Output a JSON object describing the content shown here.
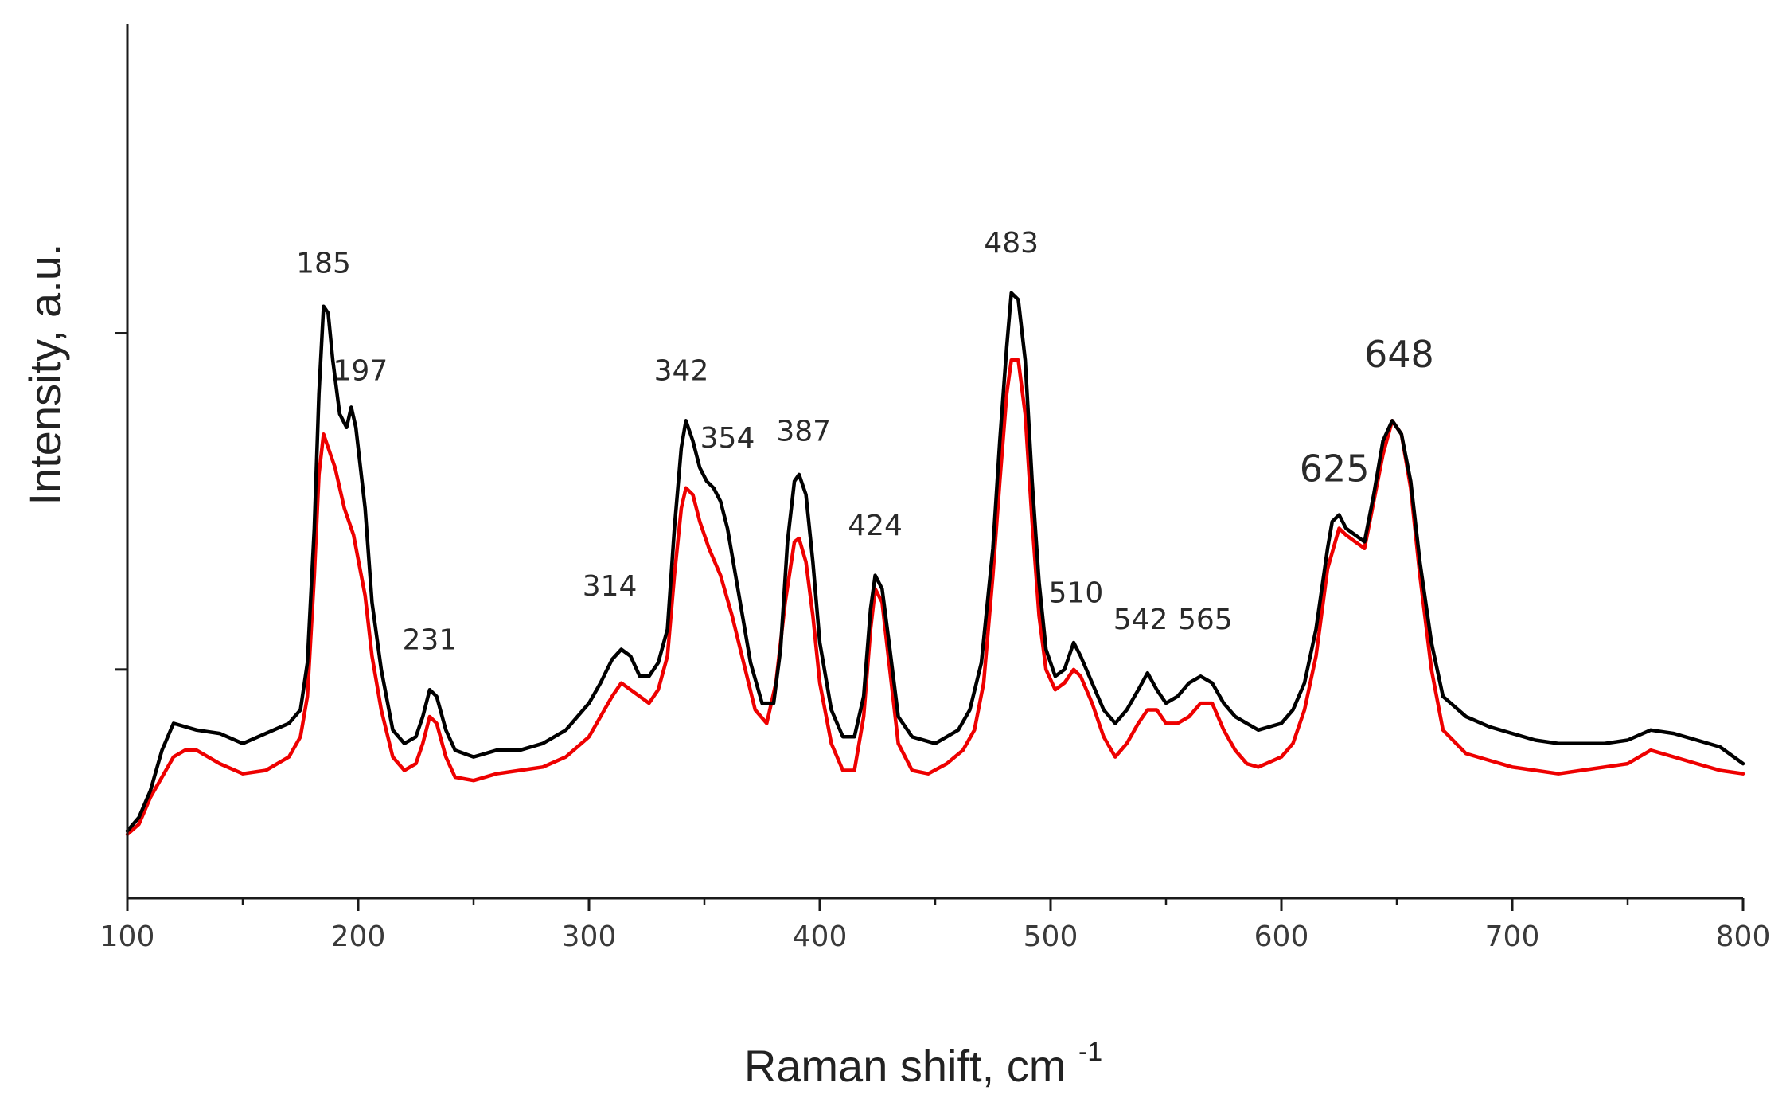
{
  "chart_data": {
    "type": "line",
    "xlabel": "Raman shift, cm",
    "xlabel_superscript": "-1",
    "ylabel": "Intensity, a.u.",
    "xlim": [
      100,
      800
    ],
    "ylim": [
      0,
      130
    ],
    "x_ticks": [
      "100",
      "200",
      "300",
      "400",
      "500",
      "600",
      "700",
      "800"
    ],
    "y_ticks": [
      34,
      84,
      134
    ],
    "grid": false,
    "series": [
      {
        "color": "#000000",
        "points": [
          [
            100,
            10
          ],
          [
            105,
            12
          ],
          [
            110,
            16
          ],
          [
            115,
            22
          ],
          [
            120,
            26
          ],
          [
            125,
            25.5
          ],
          [
            130,
            25
          ],
          [
            140,
            24.5
          ],
          [
            150,
            23
          ],
          [
            160,
            24.5
          ],
          [
            170,
            26
          ],
          [
            175,
            28
          ],
          [
            178,
            35
          ],
          [
            181,
            55
          ],
          [
            183,
            75
          ],
          [
            185,
            88
          ],
          [
            187,
            87
          ],
          [
            189,
            80
          ],
          [
            192,
            72
          ],
          [
            195,
            70
          ],
          [
            197,
            73
          ],
          [
            199,
            70
          ],
          [
            203,
            58
          ],
          [
            206,
            44
          ],
          [
            210,
            34
          ],
          [
            215,
            25
          ],
          [
            220,
            23
          ],
          [
            225,
            24
          ],
          [
            228,
            27
          ],
          [
            231,
            31
          ],
          [
            234,
            30
          ],
          [
            238,
            25
          ],
          [
            242,
            22
          ],
          [
            250,
            21
          ],
          [
            260,
            22
          ],
          [
            270,
            22
          ],
          [
            280,
            23
          ],
          [
            290,
            25
          ],
          [
            300,
            29
          ],
          [
            305,
            32
          ],
          [
            310,
            35.5
          ],
          [
            314,
            37
          ],
          [
            318,
            36
          ],
          [
            322,
            33
          ],
          [
            326,
            33
          ],
          [
            330,
            35
          ],
          [
            334,
            40
          ],
          [
            337,
            55
          ],
          [
            340,
            67
          ],
          [
            342,
            71
          ],
          [
            345,
            68
          ],
          [
            348,
            64
          ],
          [
            351,
            62
          ],
          [
            354,
            61
          ],
          [
            357,
            59
          ],
          [
            360,
            55
          ],
          [
            365,
            45
          ],
          [
            370,
            35
          ],
          [
            375,
            29
          ],
          [
            380,
            29
          ],
          [
            383,
            37
          ],
          [
            386,
            53
          ],
          [
            389,
            62
          ],
          [
            391,
            63
          ],
          [
            394,
            60
          ],
          [
            397,
            50
          ],
          [
            400,
            38
          ],
          [
            405,
            28
          ],
          [
            410,
            24
          ],
          [
            415,
            24
          ],
          [
            419,
            30
          ],
          [
            422,
            43
          ],
          [
            424,
            48
          ],
          [
            427,
            46
          ],
          [
            430,
            38
          ],
          [
            434,
            27
          ],
          [
            440,
            24
          ],
          [
            450,
            23
          ],
          [
            460,
            25
          ],
          [
            465,
            28
          ],
          [
            470,
            35
          ],
          [
            475,
            52
          ],
          [
            478,
            68
          ],
          [
            481,
            82
          ],
          [
            483,
            90
          ],
          [
            486,
            89
          ],
          [
            489,
            80
          ],
          [
            492,
            62
          ],
          [
            495,
            47
          ],
          [
            498,
            37
          ],
          [
            502,
            33
          ],
          [
            506,
            34
          ],
          [
            510,
            38
          ],
          [
            513,
            36
          ],
          [
            518,
            32
          ],
          [
            523,
            28
          ],
          [
            528,
            26
          ],
          [
            533,
            28
          ],
          [
            538,
            31
          ],
          [
            542,
            33.5
          ],
          [
            546,
            31
          ],
          [
            550,
            29
          ],
          [
            555,
            30
          ],
          [
            560,
            32
          ],
          [
            565,
            33
          ],
          [
            570,
            32
          ],
          [
            575,
            29
          ],
          [
            580,
            27
          ],
          [
            585,
            26
          ],
          [
            590,
            25
          ],
          [
            600,
            26
          ],
          [
            605,
            28
          ],
          [
            610,
            32
          ],
          [
            615,
            40
          ],
          [
            620,
            52
          ],
          [
            622,
            56
          ],
          [
            625,
            57
          ],
          [
            628,
            55
          ],
          [
            632,
            54
          ],
          [
            636,
            53
          ],
          [
            640,
            60
          ],
          [
            644,
            68
          ],
          [
            648,
            71
          ],
          [
            652,
            69
          ],
          [
            656,
            62
          ],
          [
            660,
            50
          ],
          [
            665,
            38
          ],
          [
            670,
            30
          ],
          [
            680,
            27
          ],
          [
            690,
            25.5
          ],
          [
            700,
            24.5
          ],
          [
            710,
            23.5
          ],
          [
            720,
            23
          ],
          [
            730,
            23
          ],
          [
            740,
            23
          ],
          [
            750,
            23.5
          ],
          [
            760,
            25
          ],
          [
            770,
            24.5
          ],
          [
            780,
            23.5
          ],
          [
            790,
            22.5
          ],
          [
            800,
            20
          ]
        ]
      },
      {
        "color": "#ee0000",
        "points": [
          [
            100,
            9.5
          ],
          [
            105,
            11
          ],
          [
            110,
            15
          ],
          [
            115,
            18
          ],
          [
            120,
            21
          ],
          [
            125,
            22
          ],
          [
            130,
            22
          ],
          [
            140,
            20
          ],
          [
            150,
            18.5
          ],
          [
            160,
            19
          ],
          [
            170,
            21
          ],
          [
            175,
            24
          ],
          [
            178,
            30
          ],
          [
            181,
            48
          ],
          [
            183,
            63
          ],
          [
            185,
            69
          ],
          [
            187,
            67
          ],
          [
            190,
            64
          ],
          [
            194,
            58
          ],
          [
            198,
            54
          ],
          [
            203,
            45
          ],
          [
            206,
            36
          ],
          [
            210,
            28
          ],
          [
            215,
            21
          ],
          [
            220,
            19
          ],
          [
            225,
            20
          ],
          [
            228,
            23
          ],
          [
            231,
            27
          ],
          [
            234,
            26
          ],
          [
            238,
            21
          ],
          [
            242,
            18
          ],
          [
            250,
            17.5
          ],
          [
            260,
            18.5
          ],
          [
            270,
            19
          ],
          [
            280,
            19.5
          ],
          [
            290,
            21
          ],
          [
            300,
            24
          ],
          [
            305,
            27
          ],
          [
            310,
            30
          ],
          [
            314,
            32
          ],
          [
            318,
            31
          ],
          [
            322,
            30
          ],
          [
            326,
            29
          ],
          [
            330,
            31
          ],
          [
            334,
            36
          ],
          [
            337,
            48
          ],
          [
            340,
            58
          ],
          [
            342,
            61
          ],
          [
            345,
            60
          ],
          [
            348,
            56
          ],
          [
            352,
            52
          ],
          [
            357,
            48
          ],
          [
            362,
            42
          ],
          [
            367,
            35
          ],
          [
            372,
            28
          ],
          [
            377,
            26
          ],
          [
            381,
            32
          ],
          [
            385,
            44
          ],
          [
            389,
            53
          ],
          [
            391,
            53.5
          ],
          [
            394,
            50
          ],
          [
            397,
            42
          ],
          [
            400,
            32
          ],
          [
            405,
            23
          ],
          [
            410,
            19
          ],
          [
            415,
            19
          ],
          [
            419,
            27
          ],
          [
            422,
            40
          ],
          [
            424,
            46
          ],
          [
            427,
            44
          ],
          [
            430,
            35
          ],
          [
            434,
            23
          ],
          [
            440,
            19
          ],
          [
            447,
            18.5
          ],
          [
            455,
            20
          ],
          [
            462,
            22
          ],
          [
            467,
            25
          ],
          [
            471,
            32
          ],
          [
            475,
            48
          ],
          [
            478,
            62
          ],
          [
            481,
            75
          ],
          [
            483,
            80
          ],
          [
            486,
            80
          ],
          [
            489,
            72
          ],
          [
            492,
            56
          ],
          [
            495,
            42
          ],
          [
            498,
            34
          ],
          [
            502,
            31
          ],
          [
            506,
            32
          ],
          [
            510,
            34
          ],
          [
            513,
            33
          ],
          [
            518,
            29
          ],
          [
            523,
            24
          ],
          [
            528,
            21
          ],
          [
            533,
            23
          ],
          [
            538,
            26
          ],
          [
            542,
            28
          ],
          [
            546,
            28
          ],
          [
            550,
            26
          ],
          [
            555,
            26
          ],
          [
            560,
            27
          ],
          [
            565,
            29
          ],
          [
            570,
            29
          ],
          [
            575,
            25
          ],
          [
            580,
            22
          ],
          [
            585,
            20
          ],
          [
            590,
            19.5
          ],
          [
            600,
            21
          ],
          [
            605,
            23
          ],
          [
            610,
            28
          ],
          [
            615,
            36
          ],
          [
            620,
            49
          ],
          [
            625,
            55
          ],
          [
            628,
            54
          ],
          [
            632,
            53
          ],
          [
            636,
            52
          ],
          [
            640,
            59
          ],
          [
            644,
            66
          ],
          [
            648,
            71
          ],
          [
            652,
            69
          ],
          [
            656,
            61
          ],
          [
            660,
            48
          ],
          [
            665,
            34
          ],
          [
            670,
            25
          ],
          [
            680,
            21.5
          ],
          [
            690,
            20.5
          ],
          [
            700,
            19.5
          ],
          [
            710,
            19
          ],
          [
            720,
            18.5
          ],
          [
            730,
            19
          ],
          [
            740,
            19.5
          ],
          [
            750,
            20
          ],
          [
            760,
            22
          ],
          [
            770,
            21
          ],
          [
            780,
            20
          ],
          [
            790,
            19
          ],
          [
            800,
            18.5
          ]
        ]
      }
    ],
    "annotations": [
      {
        "text": "185",
        "x": 185,
        "y": 93,
        "size": "small"
      },
      {
        "text": "197",
        "x": 201,
        "y": 77,
        "size": "small"
      },
      {
        "text": "231",
        "x": 231,
        "y": 37,
        "size": "small"
      },
      {
        "text": "314",
        "x": 309,
        "y": 45,
        "size": "small"
      },
      {
        "text": "342",
        "x": 340,
        "y": 77,
        "size": "small"
      },
      {
        "text": "354",
        "x": 360,
        "y": 67,
        "size": "small"
      },
      {
        "text": "387",
        "x": 393,
        "y": 68,
        "size": "small"
      },
      {
        "text": "424",
        "x": 424,
        "y": 54,
        "size": "small"
      },
      {
        "text": "483",
        "x": 483,
        "y": 96,
        "size": "small"
      },
      {
        "text": "510",
        "x": 511,
        "y": 44,
        "size": "small"
      },
      {
        "text": "542",
        "x": 539,
        "y": 40,
        "size": "small"
      },
      {
        "text": "565",
        "x": 567,
        "y": 40,
        "size": "small"
      },
      {
        "text": "625",
        "x": 623,
        "y": 62,
        "size": "large"
      },
      {
        "text": "648",
        "x": 651,
        "y": 79,
        "size": "large"
      }
    ]
  }
}
